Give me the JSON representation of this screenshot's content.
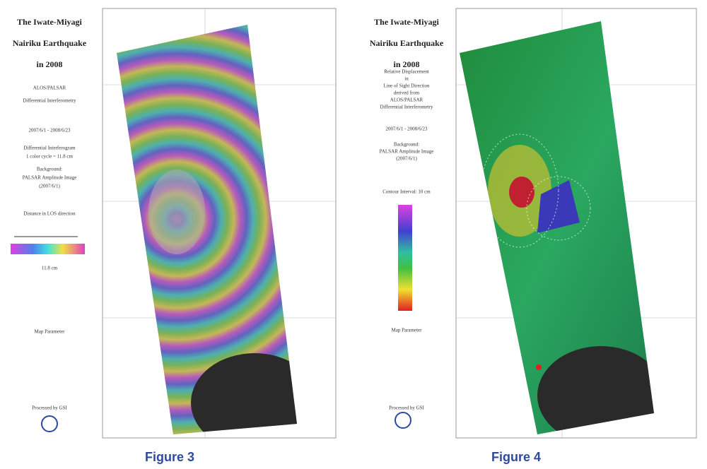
{
  "left_panel": {
    "title": [
      "The Iwate-Miyagi",
      "Nairiku Earthquake",
      "in 2008"
    ],
    "lines": [
      "ALOS/PALSAR",
      "Differential Interferometry",
      "2007/6/1 - 2008/6/23",
      "Differential Interferogram",
      "1 color cycle = 11.8 cm",
      "Background:",
      "PALSAR Amplitude Image",
      "(2007/6/1)",
      "Distance in LOS direction",
      "11.8 cm",
      "Map Parameter",
      "Processed by GSI"
    ],
    "caption": "Figure 3"
  },
  "right_panel": {
    "title": [
      "The Iwate-Miyagi",
      "Nairiku Earthquake",
      "in 2008"
    ],
    "lines": [
      "Relative Displacement",
      "in",
      "Line of Sight Direction",
      "derived from",
      "ALOS/PALSAR",
      "Differential Interferometry",
      "2007/6/1 - 2008/6/23",
      "Background:",
      "PALSAR Amplitude Image",
      "(2007/6/1)",
      "Contour Interval: 10 cm",
      "Map Parameter",
      "Processed by GSI"
    ],
    "caption": "Figure 4"
  }
}
